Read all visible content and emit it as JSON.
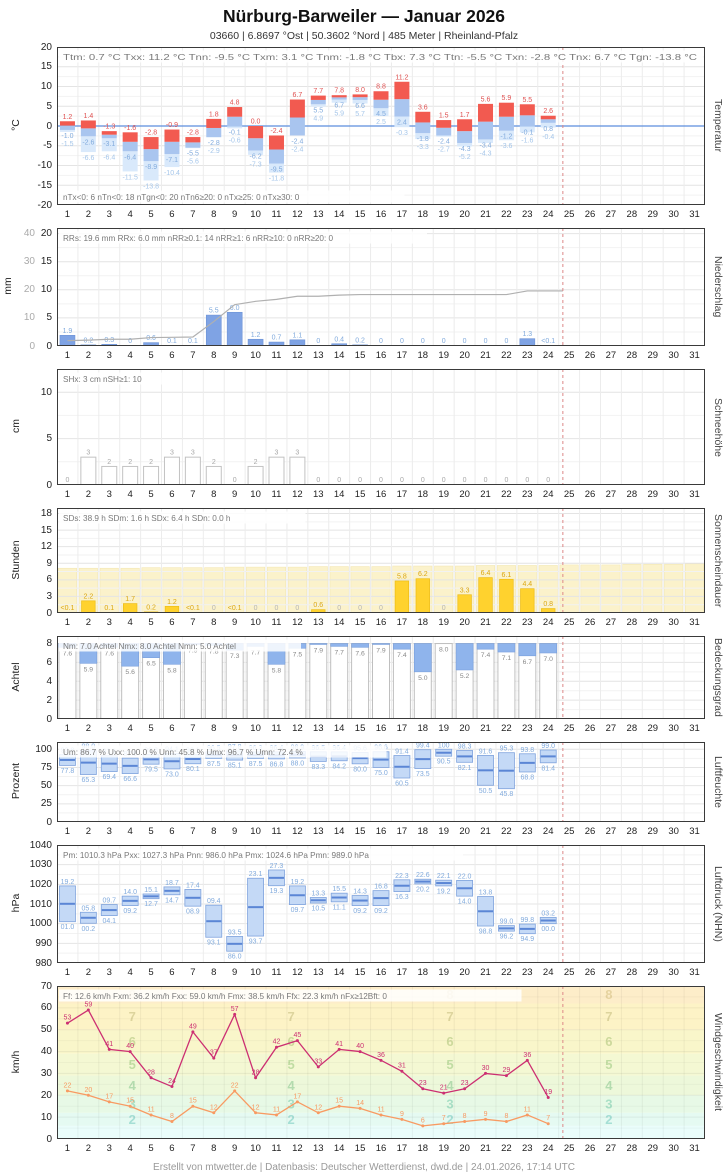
{
  "header": {
    "title": "Nürburg-Barweiler  —  Januar 2026",
    "subtitle": "03660  |  6.8697 °Ost  |  50.3602 °Nord  |  485 Meter  |  Rheinland-Pfalz"
  },
  "footer": {
    "credit": "Erstellt von mtwetter.de | Datenbasis: Deutscher Wetterdienst, dwd.de | 24.01.2026, 17:14 UTC"
  },
  "days_in_month": 31,
  "days_with_data": 24,
  "marker_day": 24.2,
  "colors": {
    "red_bar": "#f25a50",
    "red_label": "#e05252",
    "blue_bar": "#a9c5ef",
    "blue_label": "#82abdd",
    "pale_bar": "#d9e9fb",
    "pale_label": "#a5c6ea",
    "zero_line": "#5c8edd",
    "precip_bar": "#7fa3e4",
    "precip_border": "#6d93d6",
    "cum_line": "#b0b0b0",
    "snow_border": "#c2c2c2",
    "gray_label": "#a8a8a8",
    "sun_bar": "#ffd22e",
    "sun_border": "#edbd17",
    "sun_bg": "#fbf2cb",
    "sun_bg_border": "#f3e7b3",
    "sun_label": "#dba712",
    "cloud_blue": "#8fb4ec",
    "cloud_border": "#7aa0dd",
    "outline": "#bfbfbf",
    "cloud_label": "#8a8a8a",
    "range_fill": "#c4d9f6",
    "range_border": "#7fa3dd",
    "mean_line": "#5b86d5",
    "gust": "#cc2f72",
    "wind_mean": "#f89a62",
    "stats": "#787878",
    "marker": "#dd8888",
    "border": "#3a3a3a",
    "grid": "#e4e4e4",
    "grid_minor": "#f2f2f2",
    "day_grid": "#ececec"
  },
  "chart_data": [
    {
      "id": "temperature",
      "type": "range-bars",
      "unit": "°C",
      "axis_right": "Temperatur",
      "h": 158,
      "ymin": -20,
      "ymax": 20,
      "yticks": [
        -20,
        -15,
        -10,
        -5,
        0,
        5,
        10,
        15,
        20
      ],
      "stats_top": [
        "Ttm: 0.7 °C",
        "Txx: 11.2 °C",
        "Tnn: -9.5 °C",
        "Txm: 3.1 °C",
        "Tnm: -1.8 °C",
        "Tbx: 7.3 °C",
        "Ttn: -5.5 °C",
        "Txn: -2.8 °C",
        "Tnx: 6.7 °C",
        "Tgn: -13.8 °C"
      ],
      "stats_bottom": [
        "nTx<0: 6",
        "nTn<0: 18",
        "nTgn<0: 20",
        "nTn6≥20: 0",
        "nTx≥25: 0",
        "nTx≥30: 0"
      ],
      "tmax": [
        1.2,
        1.4,
        -1.3,
        -1.6,
        -2.8,
        -0.9,
        -2.8,
        1.8,
        4.8,
        0.0,
        -2.4,
        6.7,
        7.7,
        7.8,
        8.0,
        8.8,
        11.2,
        3.6,
        1.5,
        1.7,
        5.6,
        5.9,
        5.5,
        2.6
      ],
      "tmin": [
        -1.0,
        -2.6,
        -3.1,
        -6.4,
        -8.9,
        -7.1,
        -5.5,
        -2.8,
        -0.1,
        -6.2,
        -9.5,
        -2.4,
        5.5,
        6.7,
        6.6,
        4.5,
        2.4,
        -1.8,
        -2.4,
        -4.3,
        -3.4,
        -1.2,
        -0.1,
        0.8
      ],
      "tground": [
        -1.5,
        -6.6,
        -6.4,
        -11.5,
        -13.8,
        -10.4,
        -5.6,
        -2.9,
        -0.6,
        -7.3,
        -11.8,
        -2.4,
        4.9,
        5.9,
        5.7,
        2.5,
        -0.3,
        -3.3,
        -2.7,
        -5.2,
        -4.3,
        -3.6,
        -1.6,
        -0.4
      ]
    },
    {
      "id": "precipitation",
      "type": "bar",
      "unit": "mm",
      "axis_right": "Niederschlag",
      "h": 118,
      "ymin": 0,
      "ymax": 21,
      "yticks": [
        0,
        5,
        10,
        15,
        20
      ],
      "yticks2": [
        0,
        10,
        20,
        30,
        40
      ],
      "stats_top": [
        "RRs: 19.6 mm",
        "RRx: 6.0 mm",
        "nRR≥0.1: 14",
        "nRR≥1: 6",
        "nRR≥10: 0",
        "nRR≥20: 0"
      ],
      "values": [
        1.9,
        0.2,
        0.3,
        0,
        0.6,
        0.1,
        0.1,
        5.5,
        6.0,
        1.2,
        0.7,
        1.1,
        0,
        0.4,
        0.2,
        0,
        0,
        0,
        0,
        0,
        0,
        0,
        1.3,
        0.05
      ],
      "labels": [
        "1.9",
        "0.2",
        "0.3",
        "0",
        "0.6",
        "0.1",
        "0.1",
        "5.5",
        "6.0",
        "1.2",
        "0.7",
        "1.1",
        "0",
        "0.4",
        "0.2",
        "0",
        "0",
        "0",
        "0",
        "0",
        "0",
        "0",
        "1.3",
        "<0.1"
      ],
      "cumulative": [
        1.9,
        2.1,
        2.4,
        2.4,
        3.0,
        3.1,
        3.2,
        8.7,
        14.7,
        15.9,
        16.6,
        17.7,
        17.7,
        18.1,
        18.3,
        18.3,
        18.3,
        18.3,
        18.3,
        18.3,
        18.3,
        18.3,
        19.6,
        19.6
      ]
    },
    {
      "id": "snow",
      "type": "bar",
      "unit": "cm",
      "axis_right": "Schneehöhe",
      "h": 116,
      "ymin": 0,
      "ymax": 12.5,
      "yticks": [
        0,
        5,
        10
      ],
      "stats_top": [
        "SHx: 3 cm",
        "nSH≥1: 10"
      ],
      "values": [
        0,
        3,
        2,
        2,
        2,
        3,
        3,
        2,
        0,
        2,
        3,
        3,
        0,
        0,
        0,
        0,
        0,
        0,
        0,
        0,
        0,
        0,
        0,
        0
      ],
      "labels": [
        "0",
        "3",
        "2",
        "2",
        "2",
        "3",
        "3",
        "2",
        "0",
        "2",
        "3",
        "3",
        "0",
        "0",
        "0",
        "0",
        "0",
        "0",
        "0",
        "0",
        "0",
        "0",
        "0",
        "0"
      ]
    },
    {
      "id": "sunshine",
      "type": "bar",
      "unit": "Stunden",
      "axis_right": "Sonnenscheindauer",
      "h": 105,
      "ymin": 0,
      "ymax": 19,
      "yticks": [
        0,
        3,
        6,
        9,
        12,
        15,
        18
      ],
      "stats_top": [
        "SDs: 38.9 h",
        "SDm: 1.6 h",
        "SDx: 6.4 h",
        "SDn: 0.0 h"
      ],
      "values": [
        0.05,
        2.2,
        0.1,
        1.7,
        0.2,
        1.2,
        0.05,
        0,
        0.05,
        0,
        0,
        0,
        0.6,
        0,
        0,
        0,
        5.8,
        6.2,
        0,
        3.3,
        6.4,
        6.1,
        4.4,
        0.8
      ],
      "labels": [
        "<0.1",
        "2.2",
        "0.1",
        "1.7",
        "0.2",
        "1.2",
        "<0.1",
        "0",
        "<0.1",
        "0",
        "0",
        "0",
        "0.6",
        "0",
        "0",
        "0",
        "5.8",
        "6.2",
        "0",
        "3.3",
        "6.4",
        "6.1",
        "4.4",
        "0.8"
      ],
      "bg_values": [
        8.1,
        8.1,
        8.1,
        8.1,
        8.2,
        8.2,
        8.2,
        8.2,
        8.3,
        8.3,
        8.3,
        8.3,
        8.4,
        8.4,
        8.4,
        8.4,
        8.5,
        8.5,
        8.5,
        8.5,
        8.6,
        8.6,
        8.6,
        8.6,
        8.7,
        8.7,
        8.7,
        8.8,
        8.8,
        8.8,
        8.9
      ]
    },
    {
      "id": "cloudcover",
      "type": "cloud-bars",
      "unit": "Achtel",
      "axis_right": "Bedeckungsgrad",
      "h": 83,
      "ymin": 0,
      "ymax": 8.8,
      "yticks": [
        0,
        2,
        4,
        6,
        8
      ],
      "stats_top": [
        "Nm: 7.0 Achtel",
        "Nmx: 8.0 Achtel",
        "Nmn: 5.0 Achtel"
      ],
      "values": [
        7.6,
        5.9,
        7.6,
        5.6,
        6.5,
        5.8,
        7.9,
        7.8,
        7.3,
        7.7,
        5.8,
        7.5,
        7.9,
        7.7,
        7.6,
        7.9,
        7.4,
        5.0,
        8.0,
        5.2,
        7.4,
        7.1,
        6.7,
        7.0
      ]
    },
    {
      "id": "humidity",
      "type": "minmax",
      "unit": "Prozent",
      "axis_right": "Luftfeuchte",
      "h": 80,
      "ymin": 0,
      "ymax": 110,
      "yticks": [
        0,
        25,
        50,
        75,
        100
      ],
      "stats_top": [
        "Um: 86.7 %",
        "Uxx: 100.0 %",
        "Unn: 45.8 %",
        "Umx: 96.7 %",
        "Umn: 72.4 %"
      ],
      "max": [
        92.8,
        98.0,
        91.1,
        87.8,
        92.8,
        94.1,
        93.1,
        96.5,
        97.8,
        96.3,
        96.4,
        96.9,
        96.5,
        96.4,
        95.6,
        96.6,
        91.4,
        99.4,
        100,
        98.3,
        91.6,
        95.3,
        93.8,
        99.0
      ],
      "min": [
        77.8,
        65.3,
        69.4,
        66.6,
        79.5,
        73.0,
        80.1,
        87.5,
        85.1,
        87.5,
        86.8,
        88.0,
        83.3,
        84.2,
        80.0,
        75.0,
        60.5,
        73.5,
        90.5,
        82.1,
        50.5,
        45.8,
        68.8,
        81.4
      ]
    },
    {
      "id": "pressure",
      "type": "minmax",
      "unit": "hPa",
      "axis_right": "Luftdruck (NHN)",
      "h": 118,
      "ymin": 980,
      "ymax": 1040,
      "yticks": [
        980,
        990,
        1000,
        1010,
        1020,
        1030,
        1040
      ],
      "stats_top": [
        "Pm: 1010.3 hPa",
        "Pxx: 1027.3 hPa",
        "Pnn: 986.0 hPa",
        "Pmx: 1024.6 hPa",
        "Pmn: 989.0 hPa"
      ],
      "max": [
        1019.2,
        1005.8,
        1009.7,
        1014.0,
        1015.1,
        1018.7,
        1017.4,
        1009.4,
        993.5,
        1023.1,
        1027.3,
        1019.2,
        1013.3,
        1015.5,
        1014.3,
        1016.8,
        1022.3,
        1022.6,
        1022.1,
        1022.0,
        1013.8,
        999.0,
        999.8,
        1003.2
      ],
      "min": [
        1001.0,
        1000.2,
        1004.1,
        1009.2,
        1012.7,
        1014.7,
        1008.9,
        993.1,
        986.0,
        993.7,
        1019.3,
        1009.7,
        1010.5,
        1011.1,
        1009.2,
        1009.2,
        1016.3,
        1020.2,
        1019.2,
        1014.0,
        998.8,
        996.2,
        994.9,
        1000.0
      ]
    },
    {
      "id": "wind",
      "type": "line",
      "unit": "km/h",
      "axis_right": "Windgeschwindigkeit",
      "h": 153,
      "ymin": 0,
      "ymax": 70,
      "yticks": [
        0,
        10,
        20,
        30,
        40,
        50,
        60,
        70
      ],
      "stats_top": [
        "Ff: 12.6 km/h",
        "Fxm: 36.2 km/h",
        "Fxx: 59.0 km/h",
        "Fmx: 38.5 km/h",
        "Ffx: 22.3 km/h",
        "nFx≥12Bft: 0"
      ],
      "gust": [
        53,
        59,
        41,
        40,
        28,
        24,
        49,
        37,
        57,
        28,
        42,
        45,
        33,
        41,
        40,
        36,
        31,
        23,
        21,
        23,
        30,
        29,
        36,
        19
      ],
      "mean": [
        22,
        20,
        17,
        15,
        11,
        8,
        15,
        12,
        22,
        12,
        11,
        17,
        12,
        15,
        14,
        11,
        9,
        6,
        7,
        8,
        9,
        8,
        11,
        7
      ],
      "beaufort_bands": [
        {
          "max": 6,
          "color": "#eafdfb"
        },
        {
          "max": 12,
          "color": "#e5faf2"
        },
        {
          "max": 20,
          "color": "#e7f9e6"
        },
        {
          "max": 29,
          "color": "#edf8da"
        },
        {
          "max": 39,
          "color": "#f4f8d3"
        },
        {
          "max": 50,
          "color": "#f9f6ca"
        },
        {
          "max": 62,
          "color": "#fdf3c6"
        },
        {
          "max": 70,
          "color": "#fdedc9"
        }
      ],
      "beaufort_numbers": [
        {
          "n": "2",
          "y": 9,
          "color": "#9adbd0"
        },
        {
          "n": "3",
          "y": 16,
          "color": "#9edbc0"
        },
        {
          "n": "4",
          "y": 24.5,
          "color": "#abd8a8"
        },
        {
          "n": "5",
          "y": 34,
          "color": "#b8d89a"
        },
        {
          "n": "6",
          "y": 44.5,
          "color": "#c6d494"
        },
        {
          "n": "7",
          "y": 56,
          "color": "#d8cf96"
        },
        {
          "n": "8",
          "y": 66,
          "color": "#e2cf9a"
        }
      ],
      "beaufort_number_x_days": [
        3.6,
        11.2,
        18.8,
        26.4
      ]
    }
  ]
}
